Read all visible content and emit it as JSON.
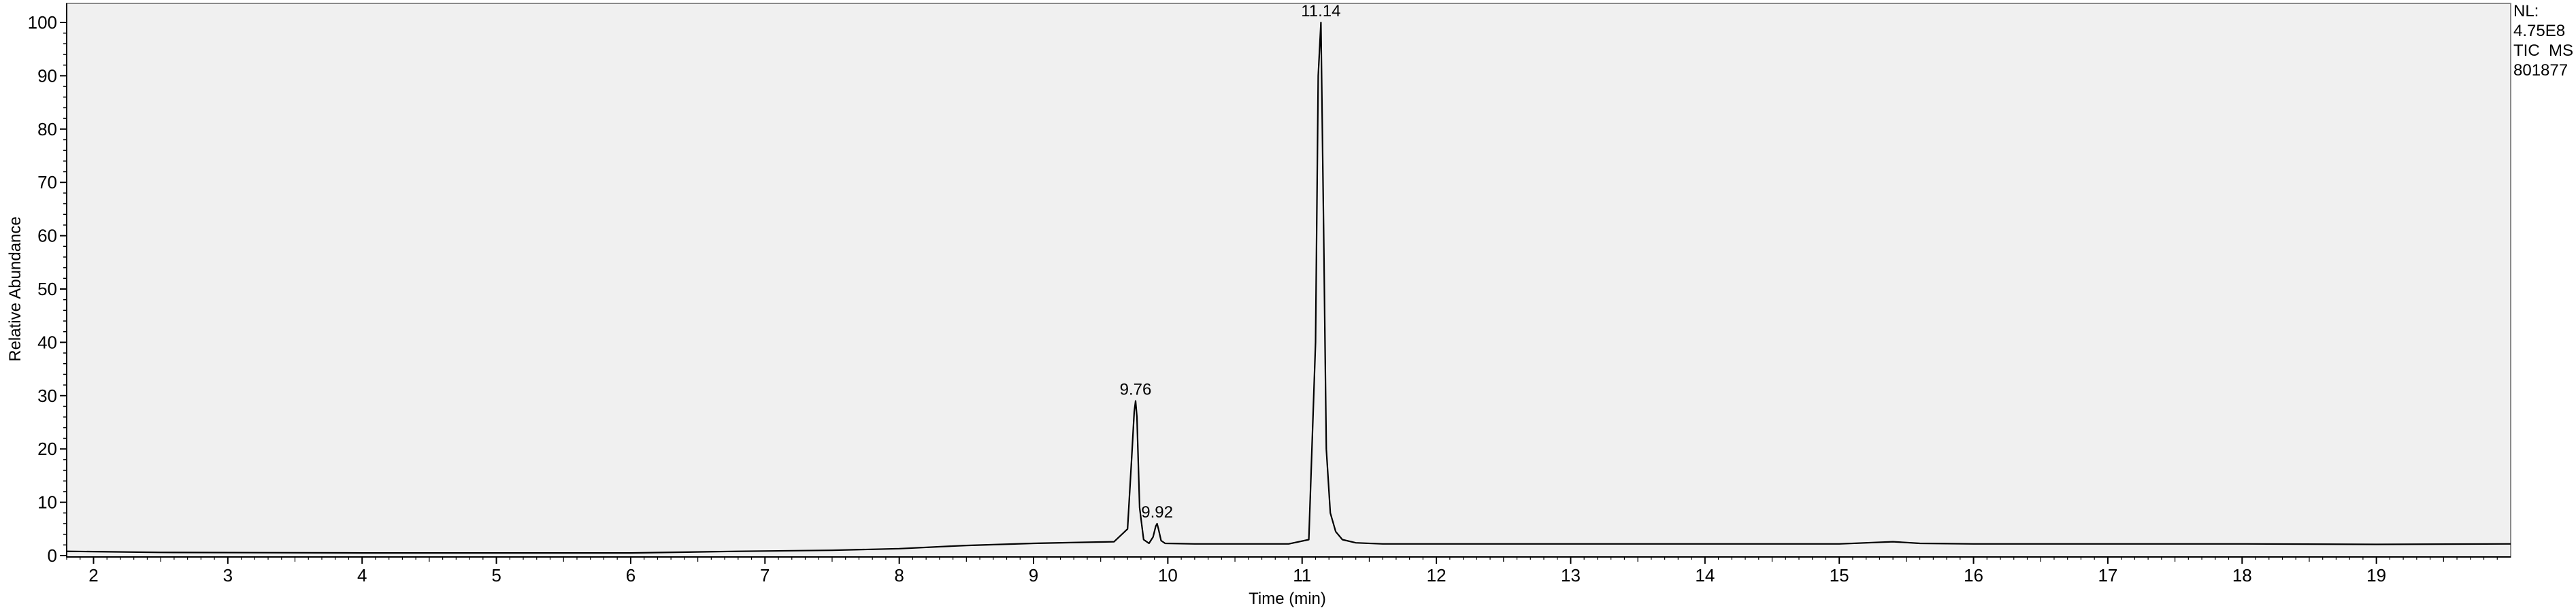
{
  "info": {
    "nl_label": "NL:",
    "nl_value": "4.75E8",
    "scan_line1": "TIC  MS",
    "scan_line2": "801877"
  },
  "chart_data": {
    "type": "line",
    "xlabel": "Time (min)",
    "ylabel": "Relative Abundance",
    "xlim": [
      1.8,
      20.0
    ],
    "ylim": [
      0,
      100
    ],
    "xticks": [
      2,
      3,
      4,
      5,
      6,
      7,
      8,
      9,
      10,
      11,
      12,
      13,
      14,
      15,
      16,
      17,
      18,
      19
    ],
    "yticks": [
      0,
      10,
      20,
      30,
      40,
      50,
      60,
      70,
      80,
      90,
      100
    ],
    "grid": false,
    "background": "#f0f0f0",
    "line_color": "#000000",
    "series": [
      {
        "x": [
          1.8,
          2.5,
          4.0,
          6.0,
          6.8,
          7.5,
          8.0,
          8.5,
          9.0,
          9.4,
          9.6,
          9.7,
          9.73,
          9.75,
          9.76,
          9.77,
          9.79,
          9.82,
          9.86,
          9.89,
          9.91,
          9.92,
          9.93,
          9.95,
          9.98,
          10.2,
          10.6,
          10.9,
          11.05,
          11.1,
          11.12,
          11.14,
          11.16,
          11.18,
          11.21,
          11.25,
          11.3,
          11.4,
          11.6,
          12.0,
          13.0,
          14.0,
          15.0,
          15.4,
          15.6,
          16.0,
          17.0,
          18.0,
          19.0,
          20.0
        ],
        "y": [
          0.8,
          0.6,
          0.5,
          0.5,
          0.8,
          1.0,
          1.3,
          1.9,
          2.3,
          2.5,
          2.6,
          5.0,
          18.0,
          27.0,
          29.0,
          26.0,
          9.0,
          3.0,
          2.3,
          3.5,
          5.5,
          6.0,
          5.0,
          2.8,
          2.3,
          2.2,
          2.2,
          2.2,
          3.0,
          40.0,
          90.0,
          100.0,
          62.0,
          20.0,
          8.0,
          4.5,
          3.0,
          2.4,
          2.2,
          2.2,
          2.2,
          2.2,
          2.2,
          2.6,
          2.3,
          2.2,
          2.2,
          2.2,
          2.1,
          2.2
        ]
      }
    ],
    "annotations": [
      {
        "x": 9.76,
        "y": 29.0,
        "text": "9.76"
      },
      {
        "x": 9.92,
        "y": 6.0,
        "text": "9.92"
      },
      {
        "x": 11.14,
        "y": 100.0,
        "text": "11.14"
      }
    ]
  }
}
